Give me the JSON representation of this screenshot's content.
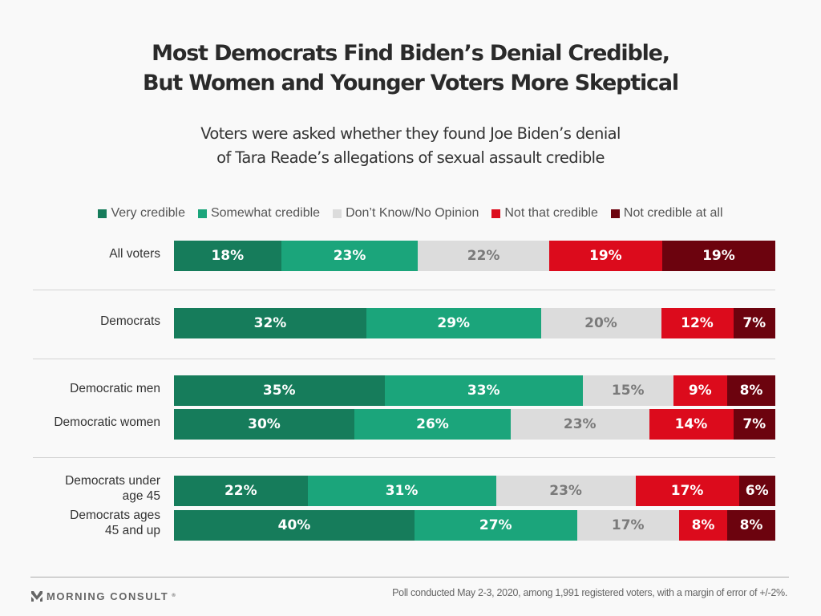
{
  "chart_data": {
    "type": "bar",
    "orientation": "horizontal",
    "stacked": true,
    "title": "Most Democrats Find Biden’s Denial Credible, But Women and Younger Voters More Skeptical",
    "title_lines": [
      "Most Democrats Find Biden’s Denial Credible,",
      "But Women and Younger Voters More Skeptical"
    ],
    "subtitle_lines": [
      "Voters were asked whether they found Joe Biden’s denial",
      "of Tara Reade’s allegations of sexual assault credible"
    ],
    "xlabel": "",
    "ylabel": "",
    "xlim": [
      0,
      100
    ],
    "unit": "%",
    "grid": false,
    "legend_position": "top",
    "categories": [
      "All voters",
      "Democrats",
      "Democratic men",
      "Democratic women",
      "Democrats under age 45",
      "Democrats ages 45 and up"
    ],
    "category_label_lines": [
      [
        "All voters"
      ],
      [
        "Democrats"
      ],
      [
        "Democratic men"
      ],
      [
        "Democratic women"
      ],
      [
        "Democrats under",
        "age 45"
      ],
      [
        "Democrats ages",
        "45 and up"
      ]
    ],
    "groups": [
      [
        0
      ],
      [
        1
      ],
      [
        2,
        3
      ],
      [
        4,
        5
      ]
    ],
    "series": [
      {
        "name": "Very credible",
        "color": "#167c5b",
        "label_color": "#ffffff",
        "values": [
          18,
          32,
          35,
          30,
          22,
          40
        ]
      },
      {
        "name": "Somewhat credible",
        "color": "#1ba57b",
        "label_color": "#ffffff",
        "values": [
          23,
          29,
          33,
          26,
          31,
          27
        ]
      },
      {
        "name": "Don’t Know/No Opinion",
        "color": "#dcdcdc",
        "label_color": "#7a7a7a",
        "values": [
          22,
          20,
          15,
          23,
          23,
          17
        ]
      },
      {
        "name": "Not that credible",
        "color": "#dc0b1c",
        "label_color": "#ffffff",
        "values": [
          19,
          12,
          9,
          14,
          17,
          8
        ]
      },
      {
        "name": "Not credible at all",
        "color": "#6c030e",
        "label_color": "#ffffff",
        "values": [
          19,
          7,
          8,
          7,
          6,
          8
        ]
      }
    ]
  },
  "footer": {
    "brand": "MORNING CONSULT",
    "brand_mark": "®",
    "note": "Poll conducted May 2-3, 2020, among 1,991 registered voters, with a margin of error of +/-2%."
  }
}
